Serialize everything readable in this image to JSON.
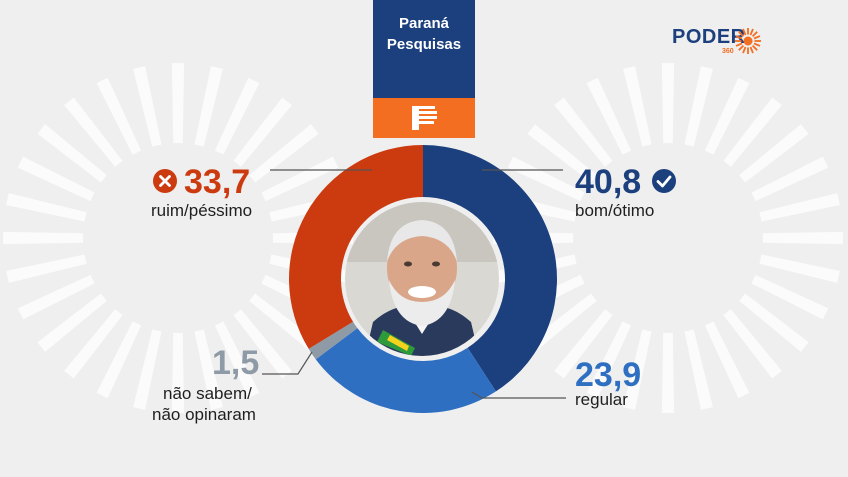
{
  "header": {
    "line1": "Paraná",
    "line2": "Pesquisas",
    "logo_icon": "parana-pesquisas-p-logo"
  },
  "brand": {
    "word": "PODER",
    "number": "360",
    "icon": "sun-icon"
  },
  "colors": {
    "bom_otimo": "#1c3f7e",
    "regular": "#2e6fc1",
    "nao_sabem": "#8e9aa6",
    "ruim_pessimo": "#cc3a10",
    "background": "#efefef"
  },
  "chart_data": {
    "type": "pie",
    "style": "donut",
    "start": "top, clockwise",
    "categories": [
      "bom/ótimo",
      "regular",
      "não sabem/ não opinaram",
      "ruim/péssimo"
    ],
    "values": [
      40.8,
      23.9,
      1.5,
      33.7
    ],
    "value_labels": [
      "40,8",
      "23,9",
      "1,5",
      "33,7"
    ],
    "colors": [
      "#1c3f7e",
      "#2e6fc1",
      "#8e9aa6",
      "#cc3a10"
    ],
    "icons": {
      "bom/ótimo": "check-circle-icon",
      "ruim/péssimo": "x-circle-icon"
    }
  },
  "labels": {
    "bom_otimo": {
      "value": "40,8",
      "line1": "bom/ótimo"
    },
    "regular": {
      "value": "23,9",
      "line1": "regular"
    },
    "nao_sabem": {
      "value": "1,5",
      "line1": "não sabem/",
      "line2": "não opinaram"
    },
    "ruim_pessimo": {
      "value": "33,7",
      "line1": "ruim/péssimo"
    }
  }
}
